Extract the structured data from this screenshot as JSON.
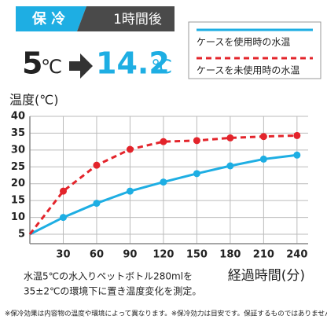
{
  "header": {
    "badge": "保 冷",
    "period": "1時間後"
  },
  "result": {
    "from": "5",
    "to": "14.2",
    "unit": "℃"
  },
  "chart_data": {
    "type": "line",
    "ylabel": "温度(℃)",
    "xlabel": "経過時間(分)",
    "x": [
      0,
      30,
      60,
      90,
      120,
      150,
      180,
      210,
      240
    ],
    "series": [
      {
        "name": "ケースを使用時の水温",
        "color": "#1eaee3",
        "style": "solid",
        "values": [
          5,
          10,
          14.2,
          17.8,
          20.5,
          23,
          25.3,
          27.3,
          28.5
        ]
      },
      {
        "name": "ケースを未使用時の水温",
        "color": "#e3242b",
        "style": "dashed",
        "values": [
          5,
          17.8,
          25.5,
          30.2,
          32.5,
          32.8,
          33.6,
          34,
          34.3
        ]
      }
    ],
    "xlim": [
      0,
      250
    ],
    "xticks": [
      30,
      60,
      90,
      120,
      150,
      180,
      210,
      240
    ],
    "ylim": [
      5,
      40
    ],
    "yticks": [
      5,
      10,
      15,
      20,
      25,
      30,
      35,
      40
    ],
    "grid": true
  },
  "notes": {
    "method": [
      "水温5℃の水入りペットボトル280mlを",
      "35±2℃の環境下に置き温度変化を測定。"
    ],
    "disclaimer": "※保冷効果は内容物の温度や環境によって異なります。※保冷効力は目安です。保証するものではありません。"
  }
}
